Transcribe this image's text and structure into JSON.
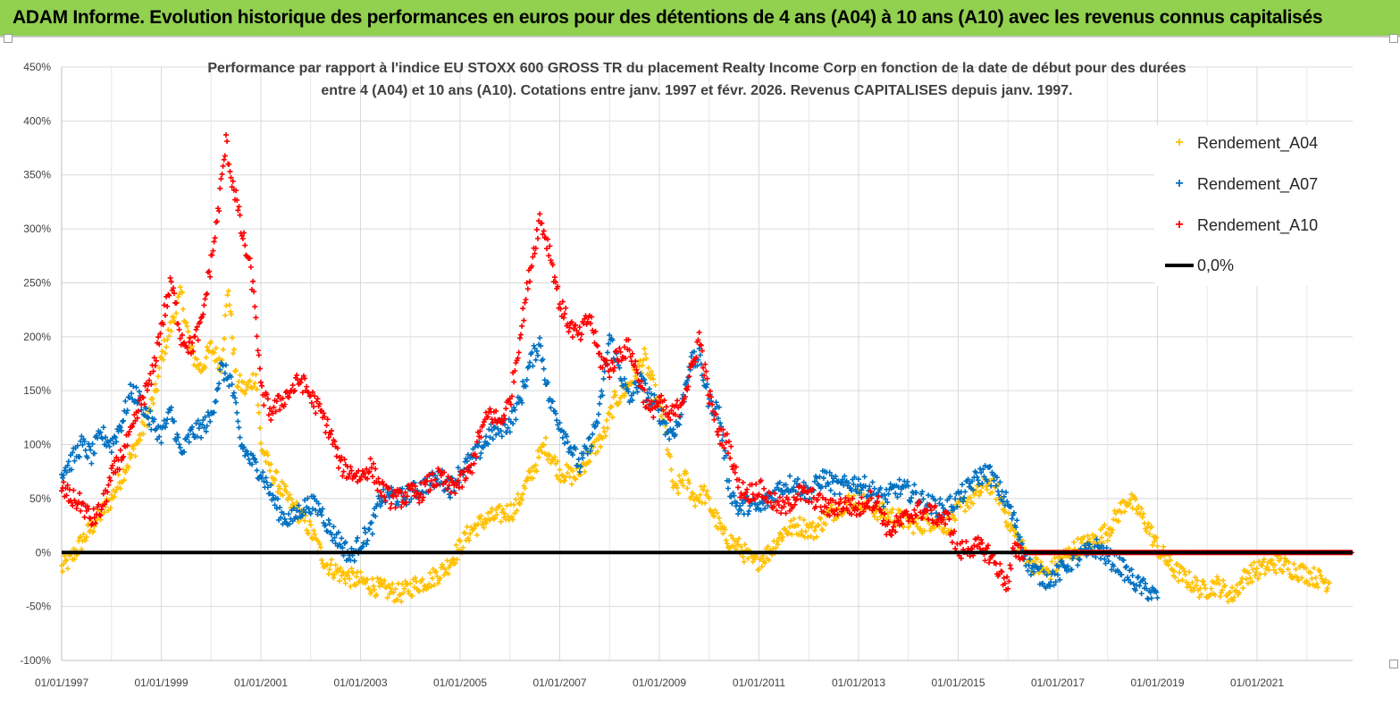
{
  "header": {
    "title": "ADAM Informe. Evolution historique des performances en euros pour des détentions de 4 ans (A04) à 10 ans (A10) avec les revenus connus capitalisés"
  },
  "chart_data": {
    "type": "scatter",
    "title": "Performance par rapport à l'indice EU STOXX 600 GROSS TR  du placement Realty Income Corp en fonction de la date de début pour des durées\nentre 4 (A04) et 10 ans (A10).  Cotations entre janv. 1997 et févr. 2026. Revenus  CAPITALISES depuis janv. 1997.",
    "xlabel": "",
    "ylabel": "",
    "x_range": [
      1997.0,
      2023.0
    ],
    "ylim": [
      -100,
      450
    ],
    "y_ticks": [
      "-100%",
      "-50%",
      "0%",
      "50%",
      "100%",
      "150%",
      "200%",
      "250%",
      "300%",
      "350%",
      "400%",
      "450%"
    ],
    "x_ticks": [
      "01/01/1997",
      "01/01/1999",
      "01/01/2001",
      "01/01/2003",
      "01/01/2005",
      "01/01/2007",
      "01/01/2009",
      "01/01/2011",
      "01/01/2013",
      "01/01/2015",
      "01/01/2017",
      "01/01/2019",
      "01/01/2021"
    ],
    "legend_position": "top-right",
    "series": [
      {
        "name": "Rendement_A04",
        "color": "#ffc000",
        "x": [
          1997.0,
          1997.2,
          1997.4,
          1997.7,
          1998.0,
          1998.3,
          1998.6,
          1998.9,
          1999.0,
          1999.2,
          1999.4,
          1999.6,
          1999.8,
          2000.0,
          2000.2,
          2000.35,
          2000.5,
          2000.7,
          2000.9,
          2001.0,
          2001.2,
          2001.4,
          2001.6,
          2001.8,
          2002.0,
          2002.3,
          2002.6,
          2002.9,
          2003.2,
          2003.5,
          2003.8,
          2004.1,
          2004.4,
          2004.7,
          2005.0,
          2005.2,
          2005.5,
          2005.8,
          2006.1,
          2006.4,
          2006.7,
          2007.0,
          2007.3,
          2007.6,
          2007.9,
          2008.1,
          2008.3,
          2008.5,
          2008.7,
          2008.9,
          2009.1,
          2009.3,
          2009.5,
          2009.7,
          2009.9,
          2010.1,
          2010.3,
          2010.6,
          2010.9,
          2011.2,
          2011.5,
          2011.8,
          2012.1,
          2012.4,
          2012.7,
          2013.0,
          2013.3,
          2013.6,
          2013.9,
          2014.2,
          2014.5,
          2014.8,
          2015.1,
          2015.4,
          2015.6,
          2015.8,
          2016.0,
          2016.2,
          2016.5,
          2016.8,
          2017.1,
          2017.4,
          2017.7,
          2018.0,
          2018.2,
          2018.4,
          2018.6,
          2018.8,
          2019.0,
          2019.3,
          2019.6,
          2019.9,
          2020.2,
          2020.5,
          2020.8,
          2021.1,
          2021.4,
          2021.7,
          2022.0,
          2022.3,
          2022.45
        ],
        "values": [
          -15,
          -5,
          10,
          30,
          50,
          80,
          110,
          150,
          180,
          210,
          240,
          185,
          170,
          190,
          175,
          245,
          160,
          150,
          165,
          100,
          75,
          60,
          45,
          35,
          20,
          -10,
          -20,
          -25,
          -30,
          -35,
          -38,
          -30,
          -25,
          -15,
          5,
          20,
          30,
          35,
          40,
          70,
          100,
          75,
          70,
          90,
          110,
          140,
          150,
          165,
          180,
          150,
          120,
          55,
          70,
          50,
          55,
          35,
          15,
          5,
          -10,
          0,
          20,
          25,
          20,
          35,
          45,
          50,
          40,
          35,
          30,
          25,
          30,
          25,
          45,
          55,
          65,
          55,
          30,
          10,
          -10,
          -20,
          -5,
          5,
          10,
          20,
          35,
          50,
          40,
          25,
          5,
          -15,
          -25,
          -35,
          -30,
          -40,
          -20,
          -15,
          -10,
          -15,
          -20,
          -25,
          -28
        ]
      },
      {
        "name": "Rendement_A07",
        "color": "#0070c0",
        "x": [
          1997.0,
          1997.2,
          1997.4,
          1997.6,
          1997.8,
          1998.0,
          1998.2,
          1998.4,
          1998.6,
          1998.8,
          1999.0,
          1999.2,
          1999.4,
          1999.6,
          1999.8,
          2000.0,
          2000.2,
          2000.4,
          2000.6,
          2000.8,
          2001.0,
          2001.2,
          2001.4,
          2001.6,
          2001.8,
          2002.0,
          2002.2,
          2002.4,
          2002.6,
          2002.8,
          2003.0,
          2003.2,
          2003.4,
          2003.6,
          2003.8,
          2004.0,
          2004.2,
          2004.4,
          2004.6,
          2004.8,
          2005.0,
          2005.2,
          2005.4,
          2005.6,
          2005.8,
          2006.0,
          2006.2,
          2006.4,
          2006.6,
          2006.8,
          2007.0,
          2007.2,
          2007.4,
          2007.6,
          2007.8,
          2008.0,
          2008.2,
          2008.4,
          2008.6,
          2008.8,
          2009.0,
          2009.2,
          2009.4,
          2009.6,
          2009.8,
          2010.0,
          2010.2,
          2010.4,
          2010.6,
          2010.8,
          2011.0,
          2011.2,
          2011.4,
          2011.7,
          2012.0,
          2012.3,
          2012.6,
          2012.9,
          2013.2,
          2013.5,
          2013.8,
          2014.1,
          2014.4,
          2014.7,
          2015.0,
          2015.2,
          2015.4,
          2015.6,
          2015.8,
          2016.0,
          2016.2,
          2016.4,
          2016.6,
          2016.8,
          2017.0,
          2017.2,
          2017.4,
          2017.6,
          2017.8,
          2018.0,
          2018.2,
          2018.4,
          2018.6,
          2018.8,
          2019.0
        ],
        "values": [
          75,
          85,
          100,
          90,
          110,
          100,
          120,
          150,
          140,
          120,
          110,
          130,
          90,
          110,
          115,
          125,
          170,
          160,
          100,
          85,
          75,
          55,
          35,
          30,
          40,
          45,
          40,
          20,
          10,
          -5,
          10,
          20,
          50,
          55,
          50,
          55,
          60,
          65,
          70,
          60,
          75,
          85,
          95,
          110,
          115,
          120,
          140,
          175,
          195,
          140,
          120,
          100,
          80,
          100,
          130,
          200,
          170,
          140,
          160,
          145,
          130,
          110,
          120,
          175,
          180,
          140,
          130,
          60,
          40,
          45,
          40,
          50,
          60,
          65,
          55,
          70,
          60,
          65,
          60,
          50,
          60,
          55,
          45,
          40,
          50,
          60,
          70,
          75,
          60,
          45,
          20,
          -10,
          -20,
          -25,
          -20,
          -10,
          -5,
          0,
          5,
          -5,
          -10,
          -20,
          -30,
          -35,
          -42
        ]
      },
      {
        "name": "Rendement_A10",
        "color": "#ff0000",
        "x": [
          1997.0,
          1997.2,
          1997.4,
          1997.6,
          1997.8,
          1998.0,
          1998.2,
          1998.4,
          1998.6,
          1998.8,
          1999.0,
          1999.2,
          1999.4,
          1999.6,
          1999.8,
          2000.0,
          2000.1,
          2000.2,
          2000.3,
          2000.4,
          2000.5,
          2000.6,
          2000.8,
          2000.9,
          2001.0,
          2001.2,
          2001.4,
          2001.6,
          2001.8,
          2002.0,
          2002.2,
          2002.4,
          2002.6,
          2002.8,
          2003.0,
          2003.2,
          2003.4,
          2003.6,
          2003.8,
          2004.0,
          2004.2,
          2004.4,
          2004.6,
          2004.8,
          2005.0,
          2005.2,
          2005.4,
          2005.6,
          2005.8,
          2006.0,
          2006.2,
          2006.4,
          2006.6,
          2006.8,
          2007.0,
          2007.2,
          2007.4,
          2007.6,
          2007.8,
          2008.0,
          2008.2,
          2008.4,
          2008.6,
          2008.8,
          2009.0,
          2009.2,
          2009.4,
          2009.6,
          2009.8,
          2010.0,
          2010.2,
          2010.4,
          2010.6,
          2010.8,
          2011.0,
          2011.2,
          2011.5,
          2011.8,
          2012.1,
          2012.4,
          2012.7,
          2013.0,
          2013.2,
          2013.4,
          2013.6,
          2013.9,
          2014.2,
          2014.5,
          2014.8,
          2015.0,
          2015.2,
          2015.4,
          2015.6,
          2015.8,
          2016.0,
          2016.1,
          2016.3,
          2016.6,
          2017.0,
          2017.5,
          2018.0,
          2018.5,
          2019.0,
          2019.5,
          2020.0,
          2020.5,
          2021.0,
          2021.5,
          2022.0,
          2022.5,
          2023.0
        ],
        "values": [
          60,
          50,
          45,
          30,
          40,
          70,
          90,
          110,
          140,
          160,
          210,
          250,
          200,
          190,
          210,
          270,
          300,
          340,
          380,
          350,
          330,
          300,
          260,
          220,
          150,
          130,
          140,
          150,
          160,
          145,
          130,
          110,
          80,
          75,
          70,
          80,
          60,
          50,
          50,
          55,
          55,
          65,
          70,
          60,
          65,
          75,
          110,
          130,
          120,
          140,
          200,
          260,
          310,
          280,
          230,
          210,
          200,
          220,
          180,
          170,
          185,
          190,
          160,
          130,
          140,
          125,
          135,
          160,
          200,
          145,
          110,
          100,
          60,
          55,
          60,
          50,
          40,
          55,
          50,
          40,
          45,
          40,
          50,
          45,
          20,
          30,
          40,
          35,
          30,
          0,
          5,
          5,
          0,
          -15,
          -30,
          0,
          0,
          0,
          0,
          0,
          0,
          0,
          0,
          0,
          0,
          0,
          0,
          0,
          0,
          0,
          0
        ]
      },
      {
        "name": "0,0%",
        "color": "#000000",
        "x": [
          1997.0,
          2023.0
        ],
        "values": [
          0,
          0
        ]
      }
    ]
  }
}
